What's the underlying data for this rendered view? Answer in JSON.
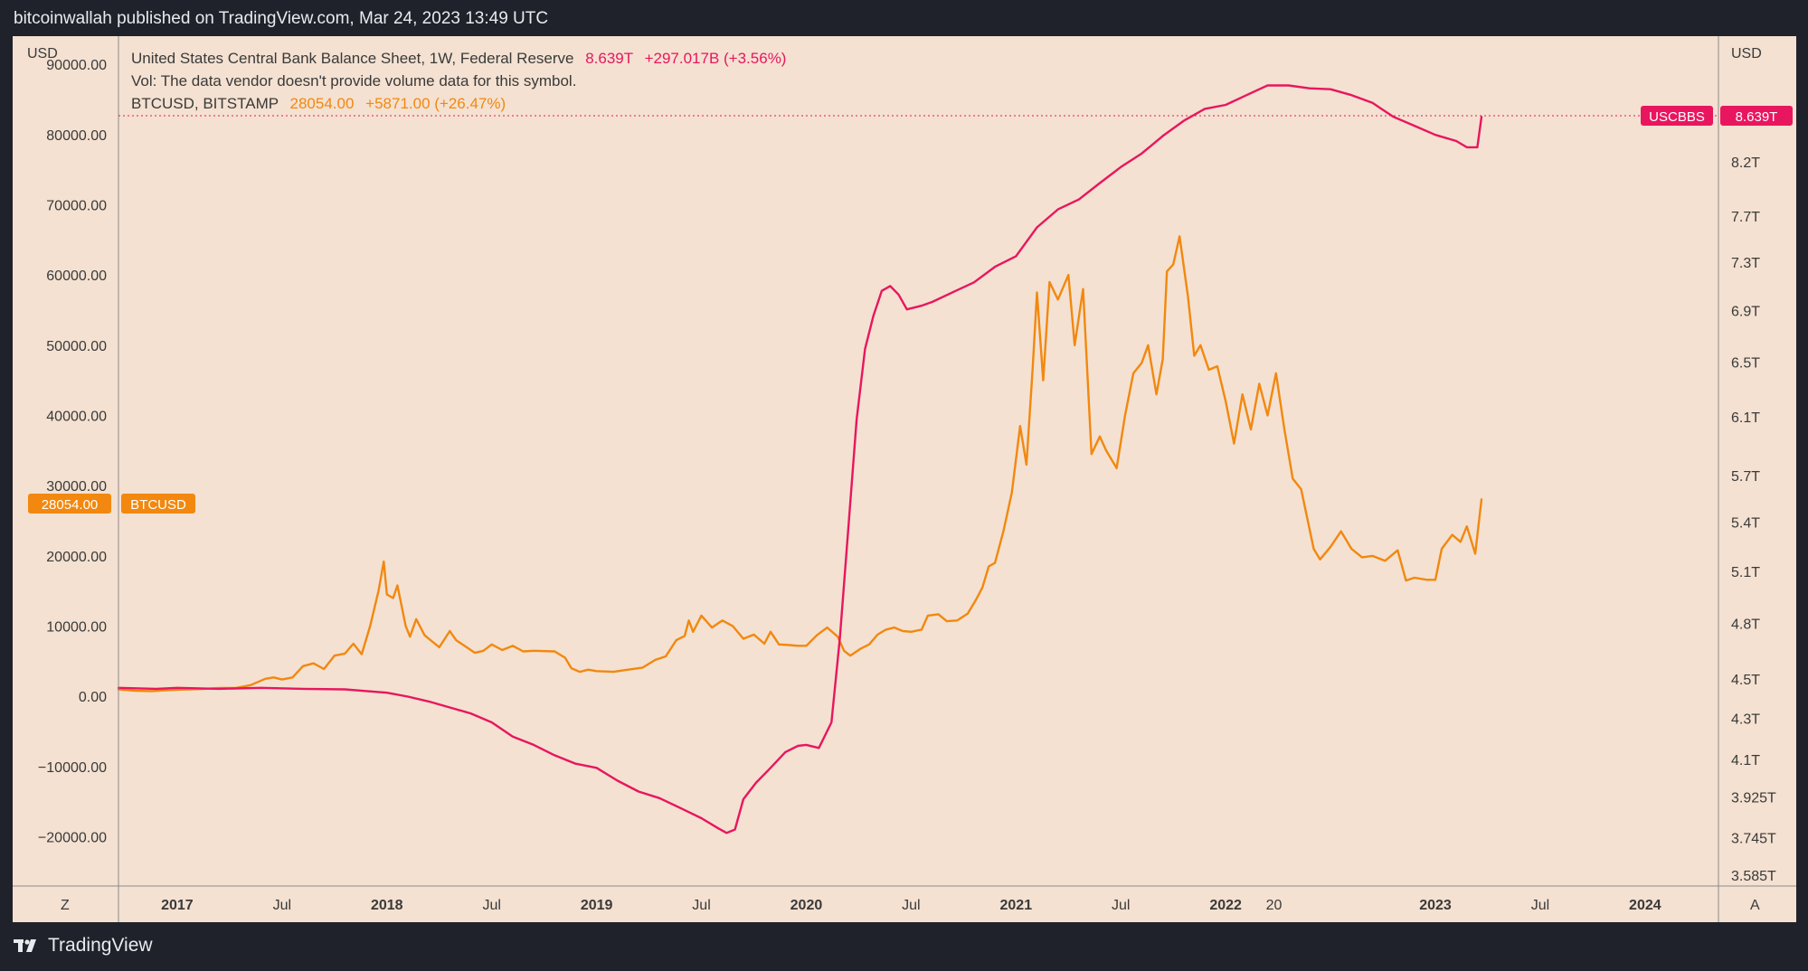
{
  "publisher": "bitcoinwallah published on TradingView.com, Mar 24, 2023 13:49 UTC",
  "footer": {
    "brand": "TradingView",
    "logo_icon": "tradingview-logo-icon"
  },
  "legend": {
    "line1_label": "United States Central Bank Balance Sheet, 1W, Federal Reserve",
    "line1_value": "8.639T",
    "line1_change": "+297.017B (+3.56%)",
    "line2": "Vol: The data vendor doesn't provide volume data for this symbol.",
    "line3_label": "BTCUSD, BITSTAMP",
    "line3_value": "28054.00",
    "line3_change": "+5871.00 (+26.47%)"
  },
  "colors": {
    "background": "#f4e1d1",
    "btc": "#f2880f",
    "fed": "#e8165f",
    "text": "#3a3a3a"
  },
  "chart_data": {
    "type": "line",
    "left_axis": {
      "unit": "USD",
      "ticks": [
        "90000.00",
        "80000.00",
        "70000.00",
        "60000.00",
        "50000.00",
        "40000.00",
        "30000.00",
        "20000.00",
        "10000.00",
        "0.00",
        "−10000.00",
        "−20000.00"
      ],
      "tick_values": [
        90000,
        80000,
        70000,
        60000,
        50000,
        40000,
        30000,
        20000,
        10000,
        0,
        -10000,
        -20000
      ],
      "range": [
        -27000,
        94000
      ]
    },
    "right_axis": {
      "unit": "USD",
      "scale": "log",
      "ticks": [
        "8.2T",
        "7.7T",
        "7.3T",
        "6.9T",
        "6.5T",
        "6.1T",
        "5.7T",
        "5.4T",
        "5.1T",
        "4.8T",
        "4.5T",
        "4.3T",
        "4.1T",
        "3.925T",
        "3.745T",
        "3.585T"
      ],
      "tick_values": [
        8.2,
        7.7,
        7.3,
        6.9,
        6.5,
        6.1,
        5.7,
        5.4,
        5.1,
        4.8,
        4.5,
        4.3,
        4.1,
        3.925,
        3.745,
        3.585
      ]
    },
    "x_axis": {
      "ticks": [
        "2017",
        "Jul",
        "2018",
        "Jul",
        "2019",
        "Jul",
        "2020",
        "Jul",
        "2021",
        "Jul",
        "2022",
        "20",
        "2023",
        "Jul",
        "2024"
      ],
      "tick_years": [
        2017,
        2017.5,
        2018,
        2018.5,
        2019,
        2019.5,
        2020,
        2020.5,
        2021,
        2021.5,
        2022,
        2022.23,
        2023,
        2023.5,
        2024
      ],
      "bold_ticks": [
        0,
        2,
        4,
        6,
        8,
        10,
        12,
        14
      ],
      "range": [
        2016.72,
        2024.35
      ],
      "corner_left": "Z",
      "corner_right": "A"
    },
    "price_labels": {
      "btc_tag": "BTCUSD",
      "btc_value": "28054.00",
      "fed_tag": "USCBBS",
      "fed_value": "8.639T"
    },
    "series": [
      {
        "name": "BTCUSD, BITSTAMP",
        "axis": "left",
        "color": "#f2880f",
        "points": [
          [
            2016.72,
            1000
          ],
          [
            2016.8,
            800
          ],
          [
            2016.88,
            750
          ],
          [
            2016.96,
            900
          ],
          [
            2017.05,
            1000
          ],
          [
            2017.12,
            1050
          ],
          [
            2017.2,
            1200
          ],
          [
            2017.28,
            1200
          ],
          [
            2017.35,
            1600
          ],
          [
            2017.42,
            2500
          ],
          [
            2017.46,
            2700
          ],
          [
            2017.5,
            2400
          ],
          [
            2017.55,
            2700
          ],
          [
            2017.6,
            4300
          ],
          [
            2017.65,
            4700
          ],
          [
            2017.7,
            3900
          ],
          [
            2017.75,
            5800
          ],
          [
            2017.8,
            6100
          ],
          [
            2017.84,
            7500
          ],
          [
            2017.88,
            6000
          ],
          [
            2017.92,
            10000
          ],
          [
            2017.96,
            15000
          ],
          [
            2017.985,
            19200
          ],
          [
            2018.0,
            14500
          ],
          [
            2018.03,
            14000
          ],
          [
            2018.05,
            15800
          ],
          [
            2018.09,
            10000
          ],
          [
            2018.11,
            8500
          ],
          [
            2018.14,
            11000
          ],
          [
            2018.18,
            8700
          ],
          [
            2018.2,
            8200
          ],
          [
            2018.25,
            7000
          ],
          [
            2018.3,
            9300
          ],
          [
            2018.33,
            8000
          ],
          [
            2018.38,
            7000
          ],
          [
            2018.42,
            6200
          ],
          [
            2018.46,
            6500
          ],
          [
            2018.5,
            7400
          ],
          [
            2018.55,
            6600
          ],
          [
            2018.6,
            7200
          ],
          [
            2018.65,
            6400
          ],
          [
            2018.7,
            6500
          ],
          [
            2018.8,
            6400
          ],
          [
            2018.85,
            5500
          ],
          [
            2018.88,
            4000
          ],
          [
            2018.92,
            3500
          ],
          [
            2018.96,
            3800
          ],
          [
            2019.0,
            3600
          ],
          [
            2019.08,
            3500
          ],
          [
            2019.15,
            3800
          ],
          [
            2019.22,
            4100
          ],
          [
            2019.28,
            5200
          ],
          [
            2019.33,
            5700
          ],
          [
            2019.38,
            8000
          ],
          [
            2019.42,
            8600
          ],
          [
            2019.44,
            10800
          ],
          [
            2019.46,
            9200
          ],
          [
            2019.5,
            11500
          ],
          [
            2019.55,
            9800
          ],
          [
            2019.6,
            10800
          ],
          [
            2019.65,
            10000
          ],
          [
            2019.7,
            8200
          ],
          [
            2019.75,
            8800
          ],
          [
            2019.8,
            7500
          ],
          [
            2019.83,
            9200
          ],
          [
            2019.87,
            7400
          ],
          [
            2019.92,
            7300
          ],
          [
            2019.96,
            7200
          ],
          [
            2020.0,
            7200
          ],
          [
            2020.05,
            8700
          ],
          [
            2020.1,
            9800
          ],
          [
            2020.15,
            8500
          ],
          [
            2020.18,
            6500
          ],
          [
            2020.21,
            5800
          ],
          [
            2020.26,
            6800
          ],
          [
            2020.3,
            7400
          ],
          [
            2020.34,
            8800
          ],
          [
            2020.38,
            9500
          ],
          [
            2020.42,
            9800
          ],
          [
            2020.46,
            9300
          ],
          [
            2020.5,
            9200
          ],
          [
            2020.55,
            9500
          ],
          [
            2020.58,
            11500
          ],
          [
            2020.63,
            11700
          ],
          [
            2020.67,
            10700
          ],
          [
            2020.72,
            10800
          ],
          [
            2020.77,
            11800
          ],
          [
            2020.81,
            13800
          ],
          [
            2020.84,
            15500
          ],
          [
            2020.87,
            18500
          ],
          [
            2020.9,
            19000
          ],
          [
            2020.94,
            23500
          ],
          [
            2020.98,
            29000
          ],
          [
            2021.02,
            38500
          ],
          [
            2021.05,
            33000
          ],
          [
            2021.08,
            47000
          ],
          [
            2021.1,
            57500
          ],
          [
            2021.13,
            45000
          ],
          [
            2021.16,
            59000
          ],
          [
            2021.2,
            56500
          ],
          [
            2021.25,
            60000
          ],
          [
            2021.28,
            50000
          ],
          [
            2021.32,
            58000
          ],
          [
            2021.36,
            34500
          ],
          [
            2021.4,
            37000
          ],
          [
            2021.43,
            35000
          ],
          [
            2021.48,
            32500
          ],
          [
            2021.52,
            40000
          ],
          [
            2021.56,
            46000
          ],
          [
            2021.6,
            47500
          ],
          [
            2021.63,
            50000
          ],
          [
            2021.67,
            43000
          ],
          [
            2021.7,
            48000
          ],
          [
            2021.72,
            60500
          ],
          [
            2021.75,
            61500
          ],
          [
            2021.78,
            65500
          ],
          [
            2021.82,
            57000
          ],
          [
            2021.85,
            48500
          ],
          [
            2021.88,
            50000
          ],
          [
            2021.92,
            46500
          ],
          [
            2021.96,
            47000
          ],
          [
            2022.0,
            42000
          ],
          [
            2022.04,
            36000
          ],
          [
            2022.08,
            43000
          ],
          [
            2022.12,
            38000
          ],
          [
            2022.16,
            44500
          ],
          [
            2022.2,
            40000
          ],
          [
            2022.24,
            46000
          ],
          [
            2022.28,
            38000
          ],
          [
            2022.32,
            31000
          ],
          [
            2022.36,
            29500
          ],
          [
            2022.42,
            21000
          ],
          [
            2022.45,
            19500
          ],
          [
            2022.5,
            21300
          ],
          [
            2022.55,
            23500
          ],
          [
            2022.6,
            21000
          ],
          [
            2022.65,
            19800
          ],
          [
            2022.7,
            20000
          ],
          [
            2022.76,
            19300
          ],
          [
            2022.82,
            20800
          ],
          [
            2022.86,
            16500
          ],
          [
            2022.9,
            16900
          ],
          [
            2022.96,
            16600
          ],
          [
            2023.0,
            16600
          ],
          [
            2023.03,
            21000
          ],
          [
            2023.08,
            23000
          ],
          [
            2023.12,
            22000
          ],
          [
            2023.15,
            24200
          ],
          [
            2023.19,
            20300
          ],
          [
            2023.22,
            28054
          ]
        ]
      },
      {
        "name": "United States Central Bank Balance Sheet, 1W, Federal Reserve",
        "axis": "right",
        "color": "#e8165f",
        "points": [
          [
            2016.72,
            4.455
          ],
          [
            2016.9,
            4.45
          ],
          [
            2017.0,
            4.455
          ],
          [
            2017.2,
            4.45
          ],
          [
            2017.4,
            4.455
          ],
          [
            2017.6,
            4.45
          ],
          [
            2017.8,
            4.447
          ],
          [
            2018.0,
            4.43
          ],
          [
            2018.1,
            4.41
          ],
          [
            2018.2,
            4.385
          ],
          [
            2018.3,
            4.355
          ],
          [
            2018.4,
            4.325
          ],
          [
            2018.5,
            4.28
          ],
          [
            2018.6,
            4.21
          ],
          [
            2018.7,
            4.17
          ],
          [
            2018.8,
            4.12
          ],
          [
            2018.9,
            4.08
          ],
          [
            2019.0,
            4.06
          ],
          [
            2019.1,
            4.0
          ],
          [
            2019.2,
            3.95
          ],
          [
            2019.3,
            3.92
          ],
          [
            2019.4,
            3.875
          ],
          [
            2019.5,
            3.83
          ],
          [
            2019.58,
            3.785
          ],
          [
            2019.62,
            3.765
          ],
          [
            2019.66,
            3.78
          ],
          [
            2019.7,
            3.915
          ],
          [
            2019.76,
            3.99
          ],
          [
            2019.82,
            4.05
          ],
          [
            2019.9,
            4.135
          ],
          [
            2019.96,
            4.165
          ],
          [
            2020.0,
            4.17
          ],
          [
            2020.06,
            4.155
          ],
          [
            2020.12,
            4.28
          ],
          [
            2020.16,
            4.72
          ],
          [
            2020.2,
            5.35
          ],
          [
            2020.24,
            6.08
          ],
          [
            2020.28,
            6.6
          ],
          [
            2020.32,
            6.86
          ],
          [
            2020.36,
            7.06
          ],
          [
            2020.4,
            7.1
          ],
          [
            2020.44,
            7.03
          ],
          [
            2020.48,
            6.91
          ],
          [
            2020.55,
            6.94
          ],
          [
            2020.6,
            6.97
          ],
          [
            2020.7,
            7.05
          ],
          [
            2020.8,
            7.13
          ],
          [
            2020.9,
            7.26
          ],
          [
            2021.0,
            7.35
          ],
          [
            2021.1,
            7.6
          ],
          [
            2021.2,
            7.76
          ],
          [
            2021.3,
            7.85
          ],
          [
            2021.4,
            8.0
          ],
          [
            2021.5,
            8.15
          ],
          [
            2021.6,
            8.28
          ],
          [
            2021.7,
            8.45
          ],
          [
            2021.8,
            8.6
          ],
          [
            2021.9,
            8.72
          ],
          [
            2022.0,
            8.76
          ],
          [
            2022.1,
            8.86
          ],
          [
            2022.2,
            8.96
          ],
          [
            2022.3,
            8.96
          ],
          [
            2022.4,
            8.93
          ],
          [
            2022.5,
            8.92
          ],
          [
            2022.6,
            8.86
          ],
          [
            2022.7,
            8.78
          ],
          [
            2022.8,
            8.64
          ],
          [
            2022.9,
            8.55
          ],
          [
            2023.0,
            8.46
          ],
          [
            2023.1,
            8.4
          ],
          [
            2023.15,
            8.34
          ],
          [
            2023.2,
            8.34
          ],
          [
            2023.22,
            8.639
          ]
        ]
      }
    ]
  }
}
